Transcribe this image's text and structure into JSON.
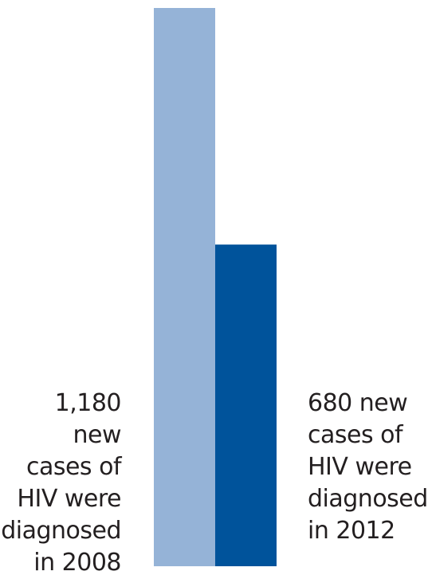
{
  "chart_data": {
    "type": "bar",
    "categories": [
      "2008",
      "2012"
    ],
    "values": [
      1180,
      680
    ],
    "ylim": [
      0,
      1180
    ],
    "grid": false,
    "legend": "none",
    "annotations": [
      "1,180 new\ncases of\nHIV were\ndiagnosed\nin 2008",
      "680 new\ncases of\nHIV were\ndiagnosed\nin 2012"
    ],
    "colors": [
      "#95b3d7",
      "#00539b"
    ]
  }
}
